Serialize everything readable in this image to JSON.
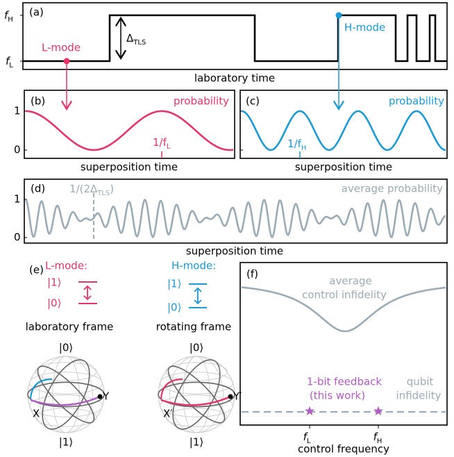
{
  "panel_a": {
    "label": "(a)",
    "ytick_high": [
      "f",
      "H"
    ],
    "ytick_low": [
      "f",
      "L"
    ],
    "delta": [
      "Δ",
      "TLS"
    ],
    "l_mode": "L-mode",
    "h_mode": "H-mode",
    "xlabel": "laboratory time"
  },
  "panel_b": {
    "label": "(b)",
    "legend": "probability",
    "ytick_top": "1",
    "ytick_bottom": "0",
    "marker": [
      "1/f",
      "L"
    ],
    "xlabel": "superposition time"
  },
  "panel_c": {
    "label": "(c)",
    "legend": "probability",
    "ytick_top": "1",
    "ytick_bottom": "0",
    "marker": [
      "1/f",
      "H"
    ],
    "xlabel": "superposition time"
  },
  "panel_d": {
    "label": "(d)",
    "marker": [
      "1/(2Δ",
      "TLS",
      ")"
    ],
    "legend": "average probability",
    "ytick_top": "1",
    "ytick_bottom": "0",
    "xlabel": "superposition time"
  },
  "panel_e": {
    "label": "(e)",
    "l_mode": {
      "title": "L-mode:",
      "ket1": "|1⟩",
      "ket0": "|0⟩",
      "frame": "laboratory frame"
    },
    "h_mode": {
      "title": "H-mode:",
      "ket1": "|1⟩",
      "ket0": "|0⟩",
      "frame": "rotating frame"
    },
    "sphere_left": {
      "top": "|0⟩",
      "bottom": "|1⟩",
      "x_axis": "X",
      "y_axis": "Y"
    },
    "sphere_right": {
      "top": "|0⟩",
      "bottom": "|1⟩",
      "x_axis": "X′",
      "y_axis": "Y′"
    }
  },
  "panel_f": {
    "label": "(f)",
    "curve_label": [
      "average",
      "control infidelity"
    ],
    "feedback_label": [
      "1-bit feedback",
      "(this work)"
    ],
    "qubit_label": [
      "qubit",
      "infidelity"
    ],
    "xtick_low": [
      "f",
      "L"
    ],
    "xtick_high": [
      "f",
      "H"
    ],
    "xlabel": "control frequency"
  }
}
